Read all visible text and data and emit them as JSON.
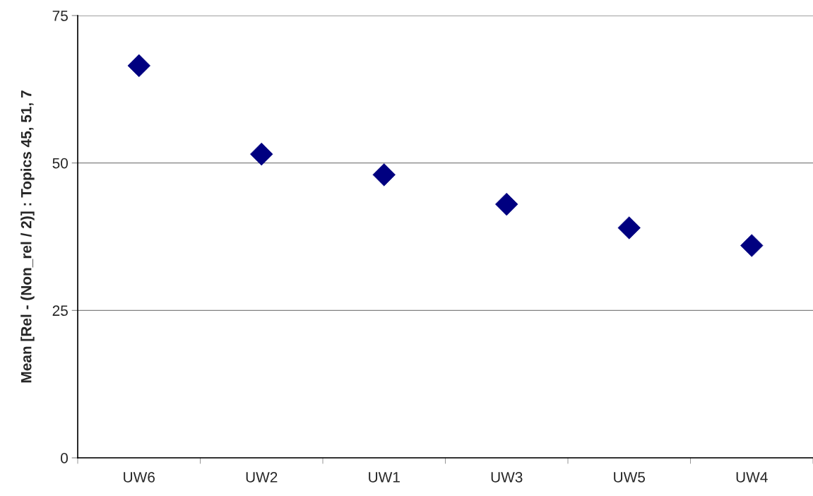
{
  "chart_data": {
    "type": "scatter",
    "ylabel": "Mean [Rel - (Non_rel / 2)] : Topics 45, 51, 7",
    "categories": [
      "UW6",
      "UW2",
      "UW1",
      "UW3",
      "UW5",
      "UW4"
    ],
    "series": [
      {
        "color": "#000080",
        "values": [
          66.5,
          51.5,
          48.0,
          43.0,
          39.0,
          36.0
        ]
      }
    ],
    "ylim": [
      0,
      75
    ],
    "yticks": [
      0,
      25,
      50,
      75
    ],
    "grid": "y",
    "marker": "diamond"
  }
}
